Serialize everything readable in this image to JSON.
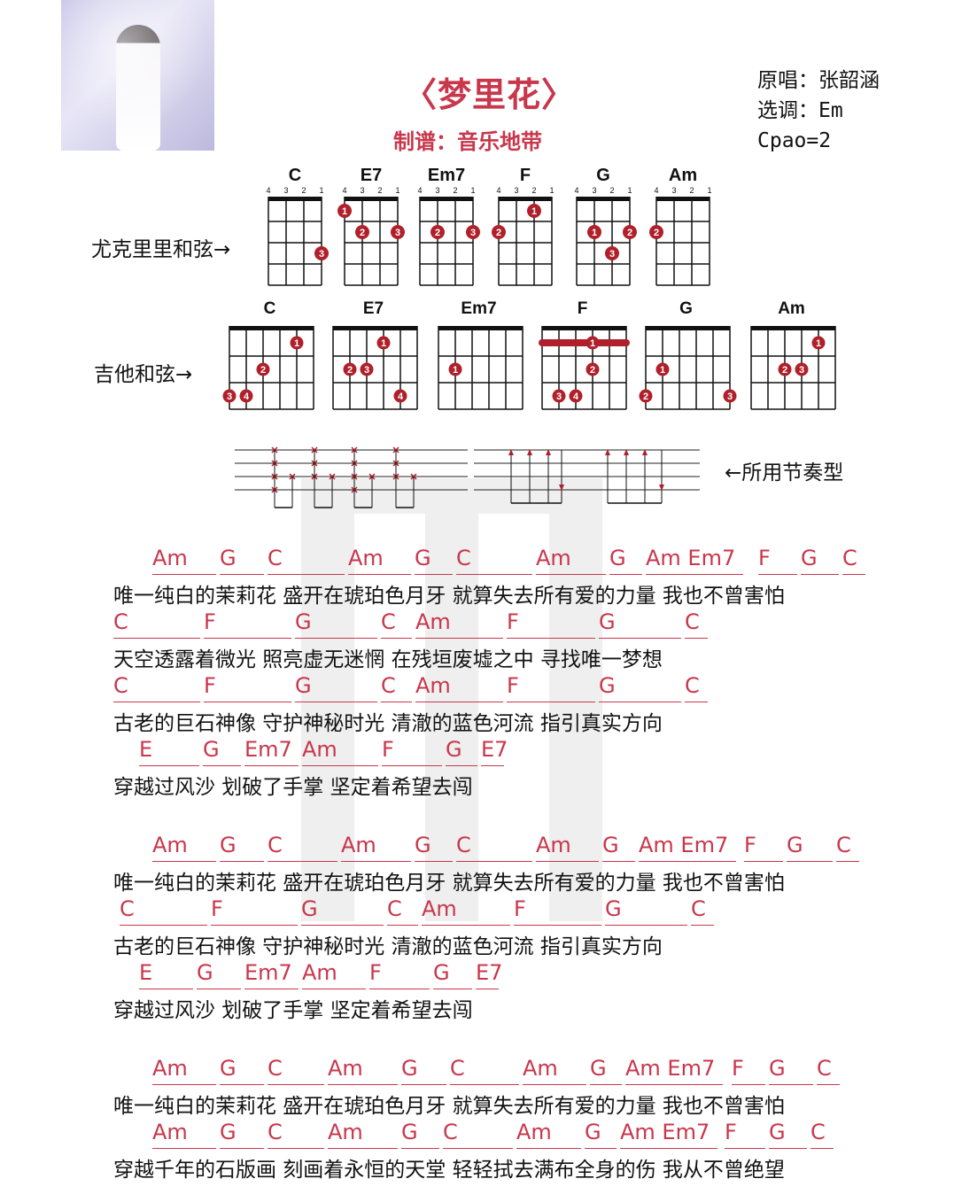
{
  "header": {
    "title": "〈梦里花〉",
    "arranger": "制谱：音乐地带",
    "original_singer": "原唱：张韶涵",
    "key": "选调：Em",
    "capo": "Cpao=2"
  },
  "sections": {
    "ukulele_label": "尤克里里和弦→",
    "guitar_label": "吉他和弦→",
    "rhythm_label": "←所用节奏型"
  },
  "ukulele_chords": [
    {
      "name": "C",
      "fingers": [
        {
          "string": 1,
          "fret": 3,
          "label": "3"
        }
      ]
    },
    {
      "name": "E7",
      "fingers": [
        {
          "string": 4,
          "fret": 1,
          "label": "1"
        },
        {
          "string": 3,
          "fret": 2,
          "label": "2"
        },
        {
          "string": 1,
          "fret": 2,
          "label": "3"
        }
      ]
    },
    {
      "name": "Em7",
      "fingers": [
        {
          "string": 3,
          "fret": 2,
          "label": "2"
        },
        {
          "string": 1,
          "fret": 2,
          "label": "3"
        }
      ]
    },
    {
      "name": "F",
      "fingers": [
        {
          "string": 2,
          "fret": 1,
          "label": "1"
        },
        {
          "string": 4,
          "fret": 2,
          "label": "2"
        }
      ]
    },
    {
      "name": "G",
      "fingers": [
        {
          "string": 3,
          "fret": 2,
          "label": "1"
        },
        {
          "string": 1,
          "fret": 2,
          "label": "2"
        },
        {
          "string": 2,
          "fret": 3,
          "label": "3"
        }
      ]
    },
    {
      "name": "Am",
      "fingers": [
        {
          "string": 4,
          "fret": 2,
          "label": "2"
        }
      ]
    }
  ],
  "guitar_chords": [
    {
      "name": "C",
      "barre": false,
      "fingers": [
        {
          "string": 2,
          "fret": 1,
          "label": "1"
        },
        {
          "string": 4,
          "fret": 2,
          "label": "2"
        },
        {
          "string": 6,
          "fret": 3,
          "label": "3"
        },
        {
          "string": 5,
          "fret": 3,
          "label": "4"
        }
      ]
    },
    {
      "name": "E7",
      "barre": false,
      "fingers": [
        {
          "string": 3,
          "fret": 1,
          "label": "1"
        },
        {
          "string": 5,
          "fret": 2,
          "label": "2"
        },
        {
          "string": 4,
          "fret": 2,
          "label": "3"
        },
        {
          "string": 2,
          "fret": 3,
          "label": "4"
        }
      ]
    },
    {
      "name": "Em7",
      "barre": false,
      "fingers": [
        {
          "string": 5,
          "fret": 2,
          "label": "1"
        }
      ]
    },
    {
      "name": "F",
      "barre": true,
      "fingers": [
        {
          "string": 3,
          "fret": 1,
          "label": "1"
        },
        {
          "string": 3,
          "fret": 2,
          "label": "2"
        },
        {
          "string": 5,
          "fret": 3,
          "label": "3"
        },
        {
          "string": 4,
          "fret": 3,
          "label": "4"
        }
      ]
    },
    {
      "name": "G",
      "barre": false,
      "fingers": [
        {
          "string": 5,
          "fret": 2,
          "label": "1"
        },
        {
          "string": 6,
          "fret": 3,
          "label": "2"
        },
        {
          "string": 1,
          "fret": 3,
          "label": "3"
        }
      ]
    },
    {
      "name": "Am",
      "barre": false,
      "fingers": [
        {
          "string": 2,
          "fret": 1,
          "label": "1"
        },
        {
          "string": 4,
          "fret": 2,
          "label": "2"
        },
        {
          "string": 3,
          "fret": 2,
          "label": "3"
        }
      ]
    }
  ],
  "colors": {
    "accent": "#c8374c",
    "dot": "#b0202a",
    "text": "#111111"
  },
  "lines": [
    {
      "chords": [
        "Am",
        "G",
        "C",
        "Am",
        "G",
        "C",
        "Am",
        "G",
        "Am Em7",
        "F",
        "G",
        "C"
      ],
      "lyric": "唯一纯白的茉莉花  盛开在琥珀色月牙  就算失去所有爱的力量  我也不曾害怕"
    },
    {
      "chords": [
        "C",
        "F",
        "G",
        "C",
        "Am",
        "F",
        "G",
        "C"
      ],
      "lyric": "天空透露着微光 照亮虚无迷惘  在残垣废墟之中 寻找唯一梦想"
    },
    {
      "chords": [
        "C",
        "F",
        "G",
        "C",
        "Am",
        "F",
        "G",
        "C"
      ],
      "lyric": "古老的巨石神像 守护神秘时光  清澈的蓝色河流 指引真实方向"
    },
    {
      "chords": [
        "E",
        "G",
        "Em7",
        "Am",
        "F",
        "G",
        "E7"
      ],
      "lyric": "穿越过风沙 划破了手掌   坚定着希望去闯"
    },
    {
      "chords": [
        "Am",
        "G",
        "C",
        "Am",
        "G",
        "C",
        "Am",
        "G",
        "Am Em7",
        "F",
        "G",
        "C"
      ],
      "lyric": "唯一纯白的茉莉花  盛开在琥珀色月牙  就算失去所有爱的力量  我也不曾害怕"
    },
    {
      "chords": [
        "C",
        "F",
        "G",
        "C",
        "Am",
        "F",
        "G",
        "C"
      ],
      "lyric": "古老的巨石神像 守护神秘时光  清澈的蓝色河流 指引真实方向"
    },
    {
      "chords": [
        "E",
        "G",
        "Em7",
        "Am",
        "F",
        "G",
        "E7"
      ],
      "lyric": "穿越过风沙 划破了手掌  坚定着希望去闯"
    },
    {
      "chords": [
        "Am",
        "G",
        "C",
        "Am",
        "G",
        "C",
        "Am",
        "G",
        "Am Em7",
        "F",
        "G",
        "C"
      ],
      "lyric": "唯一纯白的茉莉花  盛开在琥珀色月牙  就算失去所有爱的力量 我也不曾害怕"
    },
    {
      "chords": [
        "Am",
        "G",
        "C",
        "Am",
        "G",
        "C",
        "Am",
        "G",
        "Am Em7",
        "F",
        "G",
        "C"
      ],
      "lyric": "穿越千年的石版画 刻画着永恒的天堂  轻轻拭去满布全身的伤  我从不曾绝望"
    }
  ]
}
